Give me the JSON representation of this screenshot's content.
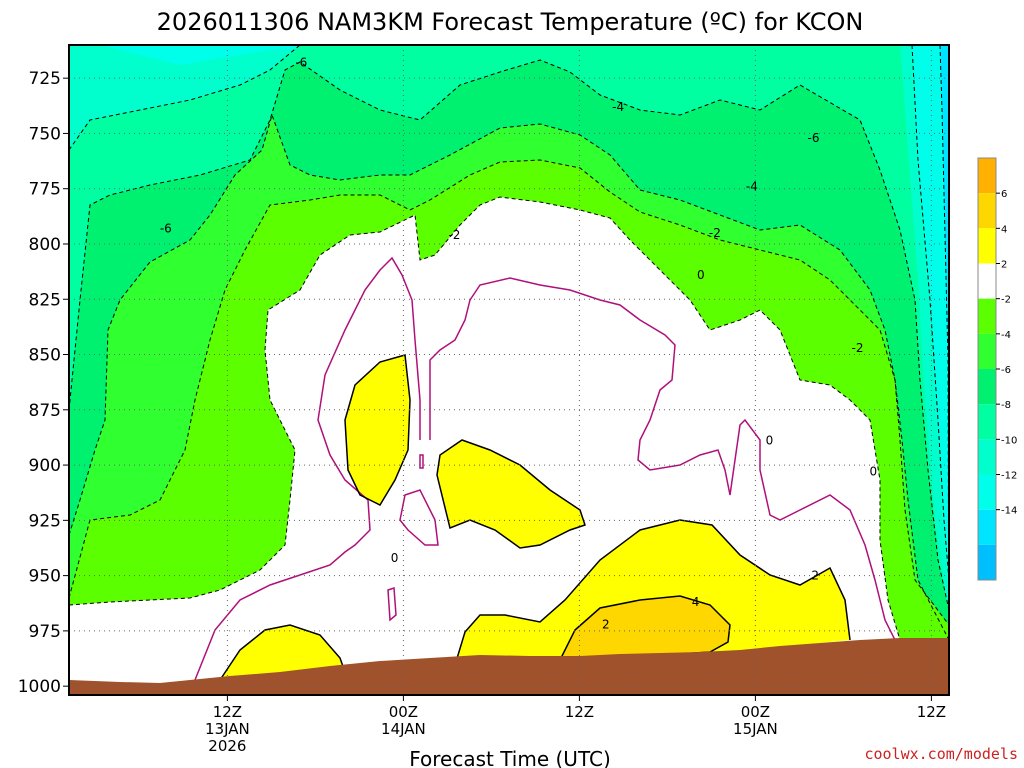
{
  "chart_data": {
    "type": "contour",
    "title": "2026011306 NAM3KM Forecast Temperature (ºC) for KCON",
    "xlabel": "Forecast Time (UTC)",
    "ylabel": "",
    "credit": "coolwx.com/models",
    "y_ticks": [
      725,
      750,
      775,
      800,
      825,
      850,
      875,
      900,
      925,
      950,
      975,
      1000
    ],
    "y_tick_labels": [
      "725",
      "750",
      "775",
      "800",
      "825",
      "850",
      "875",
      "900",
      "925",
      "950",
      "975",
      "1000"
    ],
    "ylim": [
      710,
      1004
    ],
    "y_inverted": true,
    "xlim_hours": [
      -3,
      47
    ],
    "x_ticks": [
      {
        "hour": 6,
        "lines": [
          "12Z",
          "13JAN",
          "2026"
        ]
      },
      {
        "hour": 16,
        "lines": [
          "00Z",
          "14JAN"
        ]
      },
      {
        "hour": 26,
        "lines": [
          "12Z"
        ]
      },
      {
        "hour": 36,
        "lines": [
          "00Z",
          "15JAN"
        ]
      },
      {
        "hour": 46,
        "lines": [
          "12Z"
        ]
      }
    ],
    "grid": true,
    "colorbar": {
      "levels": [
        -16,
        -14,
        -12,
        -10,
        -8,
        -6,
        -4,
        -2,
        2,
        4,
        6,
        8
      ],
      "tick_labels": [
        "-14",
        "-12",
        "-10",
        "-8",
        "-6",
        "-4",
        "-2",
        "2",
        "4",
        "6"
      ],
      "colors": [
        "#00bfff",
        "#00e5ff",
        "#00ffea",
        "#00ffcc",
        "#00ffa0",
        "#00f070",
        "#30ff30",
        "#5cff00",
        "#ffffff",
        "#ffff00",
        "#ffd700",
        "#ffb000"
      ]
    },
    "contour_labels": [
      {
        "text": "-6",
        "hour": 10.2,
        "pressure": 718
      },
      {
        "text": "-6",
        "hour": 2.5,
        "pressure": 793
      },
      {
        "text": "-4",
        "hour": 28.2,
        "pressure": 738
      },
      {
        "text": "-6",
        "hour": 39.3,
        "pressure": 752
      },
      {
        "text": "-4",
        "hour": 35.8,
        "pressure": 774
      },
      {
        "text": "-2",
        "hour": 18.9,
        "pressure": 796
      },
      {
        "text": "-2",
        "hour": 33.7,
        "pressure": 795
      },
      {
        "text": "-2",
        "hour": 41.8,
        "pressure": 847
      },
      {
        "text": "0",
        "hour": 32.9,
        "pressure": 814
      },
      {
        "text": "0",
        "hour": 36.8,
        "pressure": 889
      },
      {
        "text": "0",
        "hour": 42.7,
        "pressure": 903
      },
      {
        "text": "0",
        "hour": 15.5,
        "pressure": 942
      },
      {
        "text": "2",
        "hour": 27.5,
        "pressure": 972
      },
      {
        "text": "2",
        "hour": 39.4,
        "pressure": 950
      },
      {
        "text": "4",
        "hour": 32.6,
        "pressure": 962
      }
    ]
  }
}
